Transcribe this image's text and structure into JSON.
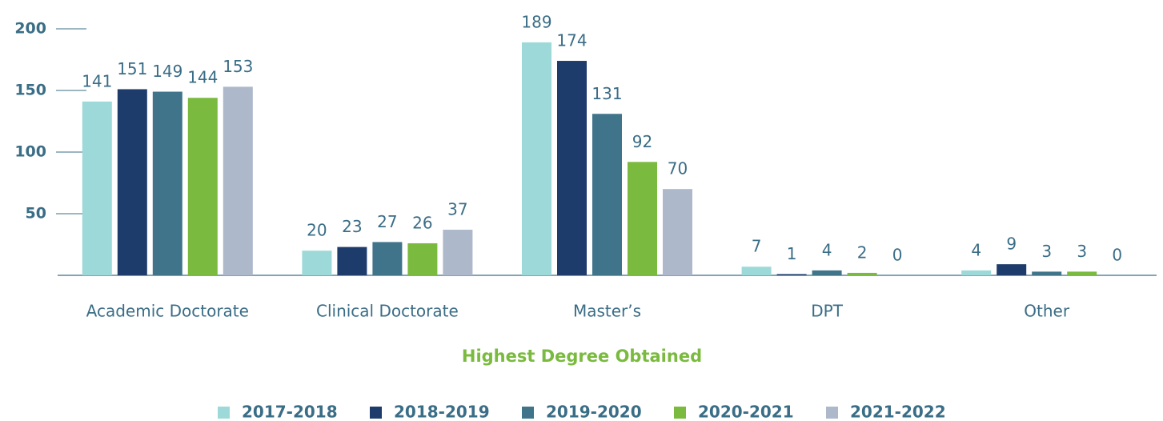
{
  "chart_data": {
    "type": "bar",
    "xlabel": "Highest Degree Obtained",
    "categories": [
      "Academic Doctorate",
      "Clinical Doctorate",
      "Master’s",
      "DPT",
      "Other"
    ],
    "series": [
      {
        "name": "2017-2018",
        "color": "#9dd9d8",
        "values": [
          141,
          20,
          189,
          7,
          4
        ]
      },
      {
        "name": "2018-2019",
        "color": "#1d3c6b",
        "values": [
          151,
          23,
          174,
          1,
          9
        ]
      },
      {
        "name": "2019-2020",
        "color": "#3f748b",
        "values": [
          149,
          27,
          131,
          4,
          3
        ]
      },
      {
        "name": "2020-2021",
        "color": "#7aba3e",
        "values": [
          144,
          26,
          92,
          2,
          3
        ]
      },
      {
        "name": "2021-2022",
        "color": "#adb8cb",
        "values": [
          153,
          37,
          70,
          0,
          0
        ]
      }
    ],
    "ylim": [
      0,
      200
    ],
    "yticks": [
      50,
      100,
      150,
      200
    ],
    "legend": "bottom"
  }
}
